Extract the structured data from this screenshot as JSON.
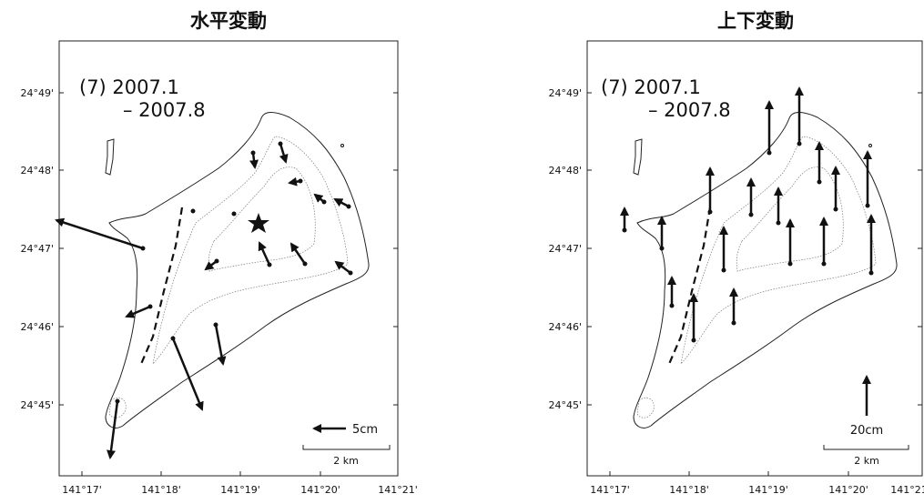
{
  "panels": [
    {
      "title": "水平変動",
      "period": [
        "(7) 2007.1",
        "– 2007.8"
      ],
      "scale_label": "5cm",
      "distance_label": "2 km"
    },
    {
      "title": "上下変動",
      "period": [
        "(7) 2007.1",
        "– 2007.8"
      ],
      "scale_label": "20cm",
      "distance_label": "2 km"
    }
  ],
  "lat_labels": [
    "24°49'",
    "24°48'",
    "24°47'",
    "24°46'",
    "24°45'"
  ],
  "lon_labels": [
    "141°17'",
    "141°18'",
    "141°19'",
    "141°20'",
    "141°21'"
  ]
}
